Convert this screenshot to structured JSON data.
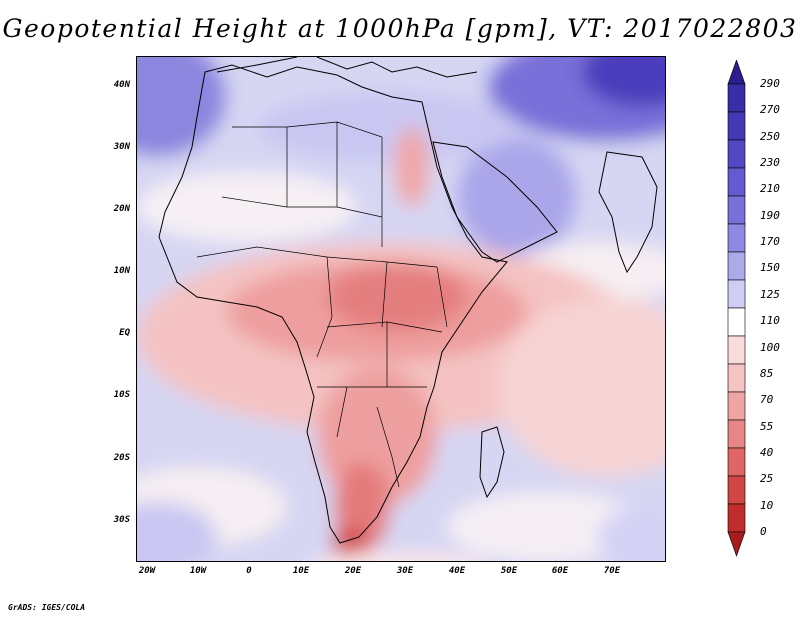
{
  "title": "Geopotential Height at 1000hPa [gpm], VT: 2017022803",
  "map": {
    "variable": "Geopotential Height",
    "level": "1000hPa",
    "units": "gpm",
    "valid_time": "2017022803",
    "lat_ticks": [
      "40N",
      "30N",
      "20N",
      "10N",
      "EQ",
      "10S",
      "20S",
      "30S"
    ],
    "lon_ticks": [
      "20W",
      "10W",
      "0",
      "10E",
      "20E",
      "30E",
      "40E",
      "50E",
      "60E",
      "70E"
    ]
  },
  "legend": {
    "levels": [
      "290",
      "270",
      "250",
      "230",
      "210",
      "190",
      "170",
      "150",
      "125",
      "110",
      "100",
      "85",
      "70",
      "55",
      "40",
      "25",
      "10",
      "0"
    ],
    "colors": [
      "#2c1e8f",
      "#3a2ea6",
      "#4637b5",
      "#5547c4",
      "#6759cf",
      "#7a70d9",
      "#9189e1",
      "#aeaaea",
      "#cfcdf4",
      "#ffffff",
      "#fbdcdc",
      "#f7c4c4",
      "#f0a5a5",
      "#e88686",
      "#e06565",
      "#d24646",
      "#c12d2d",
      "#a71c1c"
    ]
  },
  "credit": "GrADS: IGES/COLA"
}
